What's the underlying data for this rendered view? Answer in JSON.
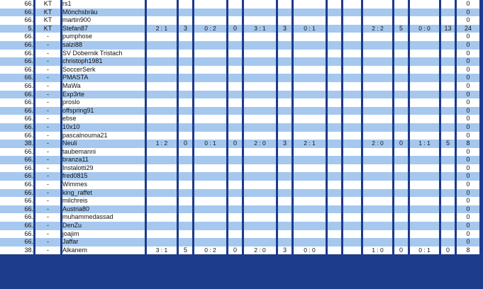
{
  "rows": [
    {
      "rank": "66.",
      "cc": "KT",
      "name": "rs1",
      "scores": [
        "",
        "",
        "",
        "",
        "",
        "",
        "",
        ""
      ],
      "points": [
        "",
        "",
        "",
        "",
        "",
        "",
        "",
        ""
      ],
      "total": "0"
    },
    {
      "rank": "66.",
      "cc": "KT",
      "name": "Mönchsbräu",
      "scores": [
        "",
        "",
        "",
        "",
        "",
        "",
        "",
        ""
      ],
      "points": [
        "",
        "",
        "",
        "",
        "",
        "",
        "",
        ""
      ],
      "total": "0"
    },
    {
      "rank": "66.",
      "cc": "KT",
      "name": "martin900",
      "scores": [
        "",
        "",
        "",
        "",
        "",
        "",
        "",
        ""
      ],
      "points": [
        "",
        "",
        "",
        "",
        "",
        "",
        "",
        ""
      ],
      "total": "0"
    },
    {
      "rank": "5.",
      "cc": "KT",
      "name": "Stefan87",
      "scores": [
        "2 : 1",
        "0 : 2",
        "3 : 1",
        "0 : 1",
        "",
        "2 : 2",
        "0 : 0",
        ""
      ],
      "points": [
        "3",
        "0",
        "3",
        "",
        "",
        "5",
        "13",
        ""
      ],
      "total": "24"
    },
    {
      "rank": "66.",
      "cc": "-",
      "name": "pumphose",
      "scores": [
        "",
        "",
        "",
        "",
        "",
        "",
        "",
        ""
      ],
      "points": [
        "",
        "",
        "",
        "",
        "",
        "",
        "",
        ""
      ],
      "total": "0"
    },
    {
      "rank": "66.",
      "cc": "-",
      "name": "salzi88",
      "scores": [
        "",
        "",
        "",
        "",
        "",
        "",
        "",
        ""
      ],
      "points": [
        "",
        "",
        "",
        "",
        "",
        "",
        "",
        ""
      ],
      "total": "0"
    },
    {
      "rank": "66.",
      "cc": "-",
      "name": "SV Dobernik Tristach",
      "scores": [
        "",
        "",
        "",
        "",
        "",
        "",
        "",
        ""
      ],
      "points": [
        "",
        "",
        "",
        "",
        "",
        "",
        "",
        ""
      ],
      "total": "0"
    },
    {
      "rank": "66.",
      "cc": "-",
      "name": "christoph1981",
      "scores": [
        "",
        "",
        "",
        "",
        "",
        "",
        "",
        ""
      ],
      "points": [
        "",
        "",
        "",
        "",
        "",
        "",
        "",
        ""
      ],
      "total": "0"
    },
    {
      "rank": "66.",
      "cc": "-",
      "name": "SoccerSerk",
      "scores": [
        "",
        "",
        "",
        "",
        "",
        "",
        "",
        ""
      ],
      "points": [
        "",
        "",
        "",
        "",
        "",
        "",
        "",
        ""
      ],
      "total": "0"
    },
    {
      "rank": "66.",
      "cc": "-",
      "name": "PMASTA",
      "scores": [
        "",
        "",
        "",
        "",
        "",
        "",
        "",
        ""
      ],
      "points": [
        "",
        "",
        "",
        "",
        "",
        "",
        "",
        ""
      ],
      "total": "0"
    },
    {
      "rank": "66.",
      "cc": "-",
      "name": "MaWa",
      "scores": [
        "",
        "",
        "",
        "",
        "",
        "",
        "",
        ""
      ],
      "points": [
        "",
        "",
        "",
        "",
        "",
        "",
        "",
        ""
      ],
      "total": "0"
    },
    {
      "rank": "66.",
      "cc": "-",
      "name": "Exp3rte",
      "scores": [
        "",
        "",
        "",
        "",
        "",
        "",
        "",
        ""
      ],
      "points": [
        "",
        "",
        "",
        "",
        "",
        "",
        "",
        ""
      ],
      "total": "0"
    },
    {
      "rank": "66.",
      "cc": "-",
      "name": "proslo",
      "scores": [
        "",
        "",
        "",
        "",
        "",
        "",
        "",
        ""
      ],
      "points": [
        "",
        "",
        "",
        "",
        "",
        "",
        "",
        ""
      ],
      "total": "0"
    },
    {
      "rank": "66.",
      "cc": "-",
      "name": "offspring91",
      "scores": [
        "",
        "",
        "",
        "",
        "",
        "",
        "",
        ""
      ],
      "points": [
        "",
        "",
        "",
        "",
        "",
        "",
        "",
        ""
      ],
      "total": "0"
    },
    {
      "rank": "66.",
      "cc": "-",
      "name": "ebse",
      "scores": [
        "",
        "",
        "",
        "",
        "",
        "",
        "",
        ""
      ],
      "points": [
        "",
        "",
        "",
        "",
        "",
        "",
        "",
        ""
      ],
      "total": "0"
    },
    {
      "rank": "66.",
      "cc": "-",
      "name": "10x10",
      "scores": [
        "",
        "",
        "",
        "",
        "",
        "",
        "",
        ""
      ],
      "points": [
        "",
        "",
        "",
        "",
        "",
        "",
        "",
        ""
      ],
      "total": "0"
    },
    {
      "rank": "66.",
      "cc": "-",
      "name": "pascalnouma21",
      "scores": [
        "",
        "",
        "",
        "",
        "",
        "",
        "",
        ""
      ],
      "points": [
        "",
        "",
        "",
        "",
        "",
        "",
        "",
        ""
      ],
      "total": "0"
    },
    {
      "rank": "38.",
      "cc": "-",
      "name": "Neuli",
      "scores": [
        "1 : 2",
        "0 : 1",
        "2 : 0",
        "2 : 1",
        "",
        "2 : 0",
        "1 : 1",
        ""
      ],
      "points": [
        "0",
        "0",
        "3",
        "",
        "",
        "0",
        "5",
        ""
      ],
      "total": "8"
    },
    {
      "rank": "66.",
      "cc": "-",
      "name": "taubemanni",
      "scores": [
        "",
        "",
        "",
        "",
        "",
        "",
        "",
        ""
      ],
      "points": [
        "",
        "",
        "",
        "",
        "",
        "",
        "",
        ""
      ],
      "total": "0"
    },
    {
      "rank": "66.",
      "cc": "-",
      "name": "branza11",
      "scores": [
        "",
        "",
        "",
        "",
        "",
        "",
        "",
        ""
      ],
      "points": [
        "",
        "",
        "",
        "",
        "",
        "",
        "",
        ""
      ],
      "total": "0"
    },
    {
      "rank": "66.",
      "cc": "-",
      "name": "Instalotti29",
      "scores": [
        "",
        "",
        "",
        "",
        "",
        "",
        "",
        ""
      ],
      "points": [
        "",
        "",
        "",
        "",
        "",
        "",
        "",
        ""
      ],
      "total": "0"
    },
    {
      "rank": "66.",
      "cc": "-",
      "name": "fred0815",
      "scores": [
        "",
        "",
        "",
        "",
        "",
        "",
        "",
        ""
      ],
      "points": [
        "",
        "",
        "",
        "",
        "",
        "",
        "",
        ""
      ],
      "total": "0"
    },
    {
      "rank": "66.",
      "cc": "-",
      "name": "Wimmes",
      "scores": [
        "",
        "",
        "",
        "",
        "",
        "",
        "",
        ""
      ],
      "points": [
        "",
        "",
        "",
        "",
        "",
        "",
        "",
        ""
      ],
      "total": "0"
    },
    {
      "rank": "66.",
      "cc": "-",
      "name": "king_raffet",
      "scores": [
        "",
        "",
        "",
        "",
        "",
        "",
        "",
        ""
      ],
      "points": [
        "",
        "",
        "",
        "",
        "",
        "",
        "",
        ""
      ],
      "total": "0"
    },
    {
      "rank": "66.",
      "cc": "-",
      "name": "milchreis",
      "scores": [
        "",
        "",
        "",
        "",
        "",
        "",
        "",
        ""
      ],
      "points": [
        "",
        "",
        "",
        "",
        "",
        "",
        "",
        ""
      ],
      "total": "0"
    },
    {
      "rank": "66.",
      "cc": "-",
      "name": "Austria80",
      "scores": [
        "",
        "",
        "",
        "",
        "",
        "",
        "",
        ""
      ],
      "points": [
        "",
        "",
        "",
        "",
        "",
        "",
        "",
        ""
      ],
      "total": "0"
    },
    {
      "rank": "66.",
      "cc": "-",
      "name": "muhammedassad",
      "scores": [
        "",
        "",
        "",
        "",
        "",
        "",
        "",
        ""
      ],
      "points": [
        "",
        "",
        "",
        "",
        "",
        "",
        "",
        ""
      ],
      "total": "0"
    },
    {
      "rank": "66.",
      "cc": "-",
      "name": "DenZu",
      "scores": [
        "",
        "",
        "",
        "",
        "",
        "",
        "",
        ""
      ],
      "points": [
        "",
        "",
        "",
        "",
        "",
        "",
        "",
        ""
      ],
      "total": "0"
    },
    {
      "rank": "66.",
      "cc": "-",
      "name": "joajim",
      "scores": [
        "",
        "",
        "",
        "",
        "",
        "",
        "",
        ""
      ],
      "points": [
        "",
        "",
        "",
        "",
        "",
        "",
        "",
        ""
      ],
      "total": "0"
    },
    {
      "rank": "66.",
      "cc": "-",
      "name": "Jaffar",
      "scores": [
        "",
        "",
        "",
        "",
        "",
        "",
        "",
        ""
      ],
      "points": [
        "",
        "",
        "",
        "",
        "",
        "",
        "",
        ""
      ],
      "total": "0"
    },
    {
      "rank": "38.",
      "cc": "-",
      "name": "Alkanem",
      "scores": [
        "3 : 1",
        "0 : 2",
        "2 : 0",
        "0 : 0",
        "",
        "1 : 0",
        "0 : 1",
        ""
      ],
      "points": [
        "5",
        "0",
        "3",
        "",
        "",
        "0",
        "0",
        ""
      ],
      "total": "8"
    }
  ],
  "colors": {
    "frame": "#1c3c8c",
    "row_even": "#ffffff",
    "row_odd": "#a6c8ee"
  }
}
